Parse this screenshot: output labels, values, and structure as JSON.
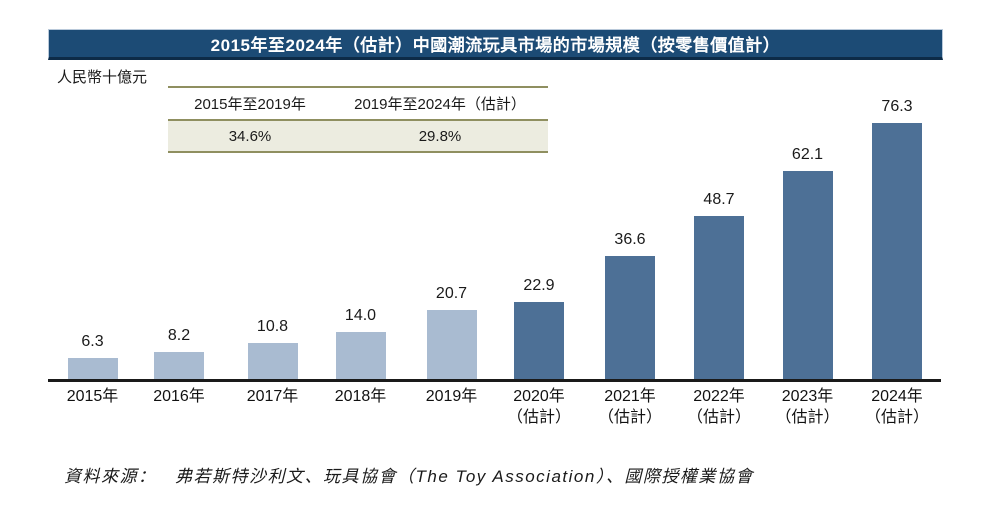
{
  "title": "2015年至2024年（估計）中國潮流玩具市場的市場規模（按零售價值計）",
  "y_axis_unit": "人民幣十億元",
  "cagr_table": {
    "col1_header": "2015年至2019年",
    "col2_header": "2019年至2024年（估計）",
    "col1_value": "34.6%",
    "col2_value": "29.8%"
  },
  "source_note": "資料來源：　弗若斯特沙利文、玩具協會（The Toy Association）、國際授權業協會",
  "colors": {
    "title_bar_bg": "#1c4b75",
    "title_text": "#ffffff",
    "historical_bar": "#a9bbd1",
    "estimated_bar": "#4d7096",
    "table_border": "#8f8f60",
    "table_value_row_bg": "#ecece0",
    "axis_line": "#1a1a1a"
  },
  "chart_data": {
    "type": "bar",
    "title": "2015年至2024年（估計）中國潮流玩具市場的市場規模（按零售價值計）",
    "ylabel": "人民幣十億元",
    "xlabel": "",
    "ylim": [
      0,
      80
    ],
    "grid": false,
    "legend": false,
    "unit": "人民幣十億元 (RMB billions)",
    "categories": [
      "2015年",
      "2016年",
      "2017年",
      "2018年",
      "2019年",
      "2020年（估計）",
      "2021年（估計）",
      "2022年（估計）",
      "2023年（估計）",
      "2024年（估計）"
    ],
    "values": [
      6.3,
      8.2,
      10.8,
      14.0,
      20.7,
      22.9,
      36.6,
      48.7,
      62.1,
      76.3
    ],
    "bars": [
      {
        "label": "2015年",
        "sublabel": "",
        "value": 6.3,
        "display": "6.3",
        "estimated": false
      },
      {
        "label": "2016年",
        "sublabel": "",
        "value": 8.2,
        "display": "8.2",
        "estimated": false
      },
      {
        "label": "2017年",
        "sublabel": "",
        "value": 10.8,
        "display": "10.8",
        "estimated": false
      },
      {
        "label": "2018年",
        "sublabel": "",
        "value": 14.0,
        "display": "14.0",
        "estimated": false
      },
      {
        "label": "2019年",
        "sublabel": "",
        "value": 20.7,
        "display": "20.7",
        "estimated": false
      },
      {
        "label": "2020年",
        "sublabel": "（估計）",
        "value": 22.9,
        "display": "22.9",
        "estimated": true
      },
      {
        "label": "2021年",
        "sublabel": "（估計）",
        "value": 36.6,
        "display": "36.6",
        "estimated": true
      },
      {
        "label": "2022年",
        "sublabel": "（估計）",
        "value": 48.7,
        "display": "48.7",
        "estimated": true
      },
      {
        "label": "2023年",
        "sublabel": "（估計）",
        "value": 62.1,
        "display": "62.1",
        "estimated": true
      },
      {
        "label": "2024年",
        "sublabel": "（估計）",
        "value": 76.3,
        "display": "76.3",
        "estimated": true
      }
    ],
    "cagr_annotations": [
      {
        "period": "2015年至2019年",
        "cagr": "34.6%"
      },
      {
        "period": "2019年至2024年（估計）",
        "cagr": "29.8%"
      }
    ]
  }
}
